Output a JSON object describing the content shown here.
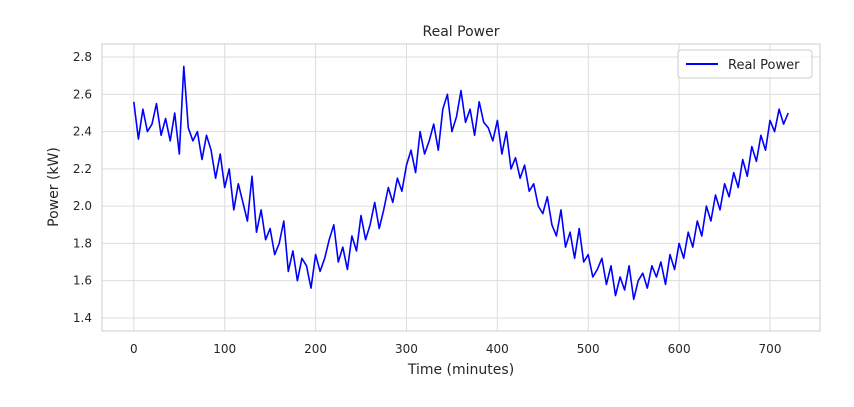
{
  "chart_data": {
    "type": "line",
    "title": "Real Power",
    "xlabel": "Time (minutes)",
    "ylabel": "Power (kW)",
    "xlim": [
      -35,
      755
    ],
    "ylim": [
      1.33,
      2.87
    ],
    "xticks": [
      0,
      100,
      200,
      300,
      400,
      500,
      600,
      700
    ],
    "yticks": [
      1.4,
      1.6,
      1.8,
      2.0,
      2.2,
      2.4,
      2.6,
      2.8
    ],
    "xtick_labels": [
      "0",
      "100",
      "200",
      "300",
      "400",
      "500",
      "600",
      "700"
    ],
    "ytick_labels": [
      "1.4",
      "1.6",
      "1.8",
      "2.0",
      "2.2",
      "2.4",
      "2.6",
      "2.8"
    ],
    "grid": true,
    "legend_position": "top-right",
    "series": [
      {
        "name": "Real Power",
        "color": "#0000ff",
        "x": [
          0,
          5,
          10,
          15,
          20,
          25,
          30,
          35,
          40,
          45,
          50,
          55,
          60,
          65,
          70,
          75,
          80,
          85,
          90,
          95,
          100,
          105,
          110,
          115,
          120,
          125,
          130,
          135,
          140,
          145,
          150,
          155,
          160,
          165,
          170,
          175,
          180,
          185,
          190,
          195,
          200,
          205,
          210,
          215,
          220,
          225,
          230,
          235,
          240,
          245,
          250,
          255,
          260,
          265,
          270,
          275,
          280,
          285,
          290,
          295,
          300,
          305,
          310,
          315,
          320,
          325,
          330,
          335,
          340,
          345,
          350,
          355,
          360,
          365,
          370,
          375,
          380,
          385,
          390,
          395,
          400,
          405,
          410,
          415,
          420,
          425,
          430,
          435,
          440,
          445,
          450,
          455,
          460,
          465,
          470,
          475,
          480,
          485,
          490,
          495,
          500,
          505,
          510,
          515,
          520,
          525,
          530,
          535,
          540,
          545,
          550,
          555,
          560,
          565,
          570,
          575,
          580,
          585,
          590,
          595,
          600,
          605,
          610,
          615,
          620,
          625,
          630,
          635,
          640,
          645,
          650,
          655,
          660,
          665,
          670,
          675,
          680,
          685,
          690,
          695,
          700,
          705,
          710,
          715,
          720
        ],
        "values": [
          2.56,
          2.36,
          2.52,
          2.4,
          2.44,
          2.55,
          2.38,
          2.47,
          2.35,
          2.5,
          2.28,
          2.75,
          2.42,
          2.35,
          2.4,
          2.25,
          2.38,
          2.3,
          2.15,
          2.28,
          2.1,
          2.2,
          1.98,
          2.12,
          2.02,
          1.92,
          2.16,
          1.86,
          1.98,
          1.82,
          1.88,
          1.74,
          1.8,
          1.92,
          1.65,
          1.76,
          1.6,
          1.72,
          1.68,
          1.56,
          1.74,
          1.65,
          1.72,
          1.82,
          1.9,
          1.7,
          1.78,
          1.66,
          1.84,
          1.76,
          1.95,
          1.82,
          1.9,
          2.02,
          1.88,
          1.98,
          2.1,
          2.02,
          2.15,
          2.08,
          2.22,
          2.3,
          2.18,
          2.4,
          2.28,
          2.35,
          2.44,
          2.3,
          2.52,
          2.6,
          2.4,
          2.48,
          2.62,
          2.45,
          2.52,
          2.38,
          2.56,
          2.45,
          2.42,
          2.35,
          2.46,
          2.28,
          2.4,
          2.2,
          2.26,
          2.15,
          2.22,
          2.08,
          2.12,
          2.0,
          1.96,
          2.05,
          1.9,
          1.84,
          1.98,
          1.78,
          1.86,
          1.72,
          1.88,
          1.7,
          1.74,
          1.62,
          1.66,
          1.72,
          1.58,
          1.68,
          1.52,
          1.62,
          1.55,
          1.68,
          1.5,
          1.6,
          1.64,
          1.56,
          1.68,
          1.62,
          1.7,
          1.58,
          1.74,
          1.66,
          1.8,
          1.72,
          1.86,
          1.78,
          1.92,
          1.84,
          2.0,
          1.92,
          2.06,
          1.98,
          2.12,
          2.05,
          2.18,
          2.1,
          2.25,
          2.16,
          2.32,
          2.24,
          2.38,
          2.3,
          2.46,
          2.4,
          2.52,
          2.44,
          2.5
        ]
      }
    ]
  }
}
